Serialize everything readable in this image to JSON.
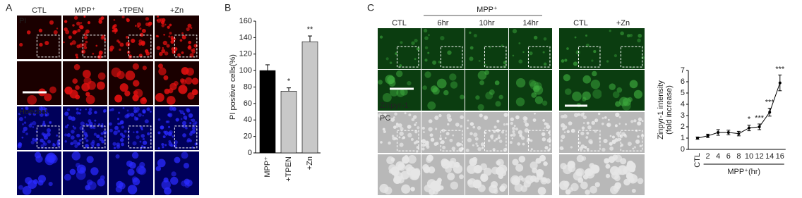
{
  "figure": {
    "panel_labels": [
      "A",
      "B",
      "C"
    ],
    "a": {
      "columns": [
        "CTL",
        "MPP⁺",
        "+TPEN",
        "+Zn"
      ],
      "rows": [
        "PI",
        "Hoechst"
      ]
    },
    "c": {
      "group": "MPP⁺",
      "columns": [
        "CTL",
        "6hr",
        "10hr",
        "14hr"
      ],
      "columns2": [
        "CTL",
        "+Zn"
      ],
      "rows": [
        "Zinpyr-1",
        "PC"
      ]
    }
  },
  "chart_data": [
    {
      "type": "bar",
      "y_label": "PI positive cells(%)",
      "categories": [
        "MPP⁺",
        "+TPEN",
        "+Zn"
      ],
      "values": [
        100,
        75,
        135
      ],
      "errors": [
        7,
        4,
        7
      ],
      "colors": [
        "#000000",
        "#c8c8c8",
        "#c8c8c8"
      ],
      "significance": [
        null,
        "*",
        "**"
      ],
      "ylim": [
        0,
        160
      ],
      "yticks": [
        0,
        20,
        40,
        60,
        80,
        100,
        120,
        140,
        160
      ]
    },
    {
      "type": "line",
      "y_label": [
        "Zinpyr-1 intensity",
        "(fold increase)"
      ],
      "x_label": "MPP⁺(hr)",
      "categories": [
        "CTL",
        "2",
        "4",
        "6",
        "8",
        "10",
        "12",
        "14",
        "16"
      ],
      "values": [
        1,
        1.2,
        1.5,
        1.5,
        1.4,
        1.9,
        2.0,
        3.3,
        5.9
      ],
      "errors": [
        0.1,
        0.15,
        0.25,
        0.2,
        0.2,
        0.25,
        0.25,
        0.35,
        0.7
      ],
      "significance": [
        null,
        null,
        null,
        null,
        null,
        "*",
        "***",
        "***",
        "***"
      ],
      "color": "#000000",
      "ylim": [
        0,
        7
      ],
      "yticks": [
        0,
        1,
        2,
        3,
        4,
        5,
        6,
        7
      ]
    }
  ]
}
